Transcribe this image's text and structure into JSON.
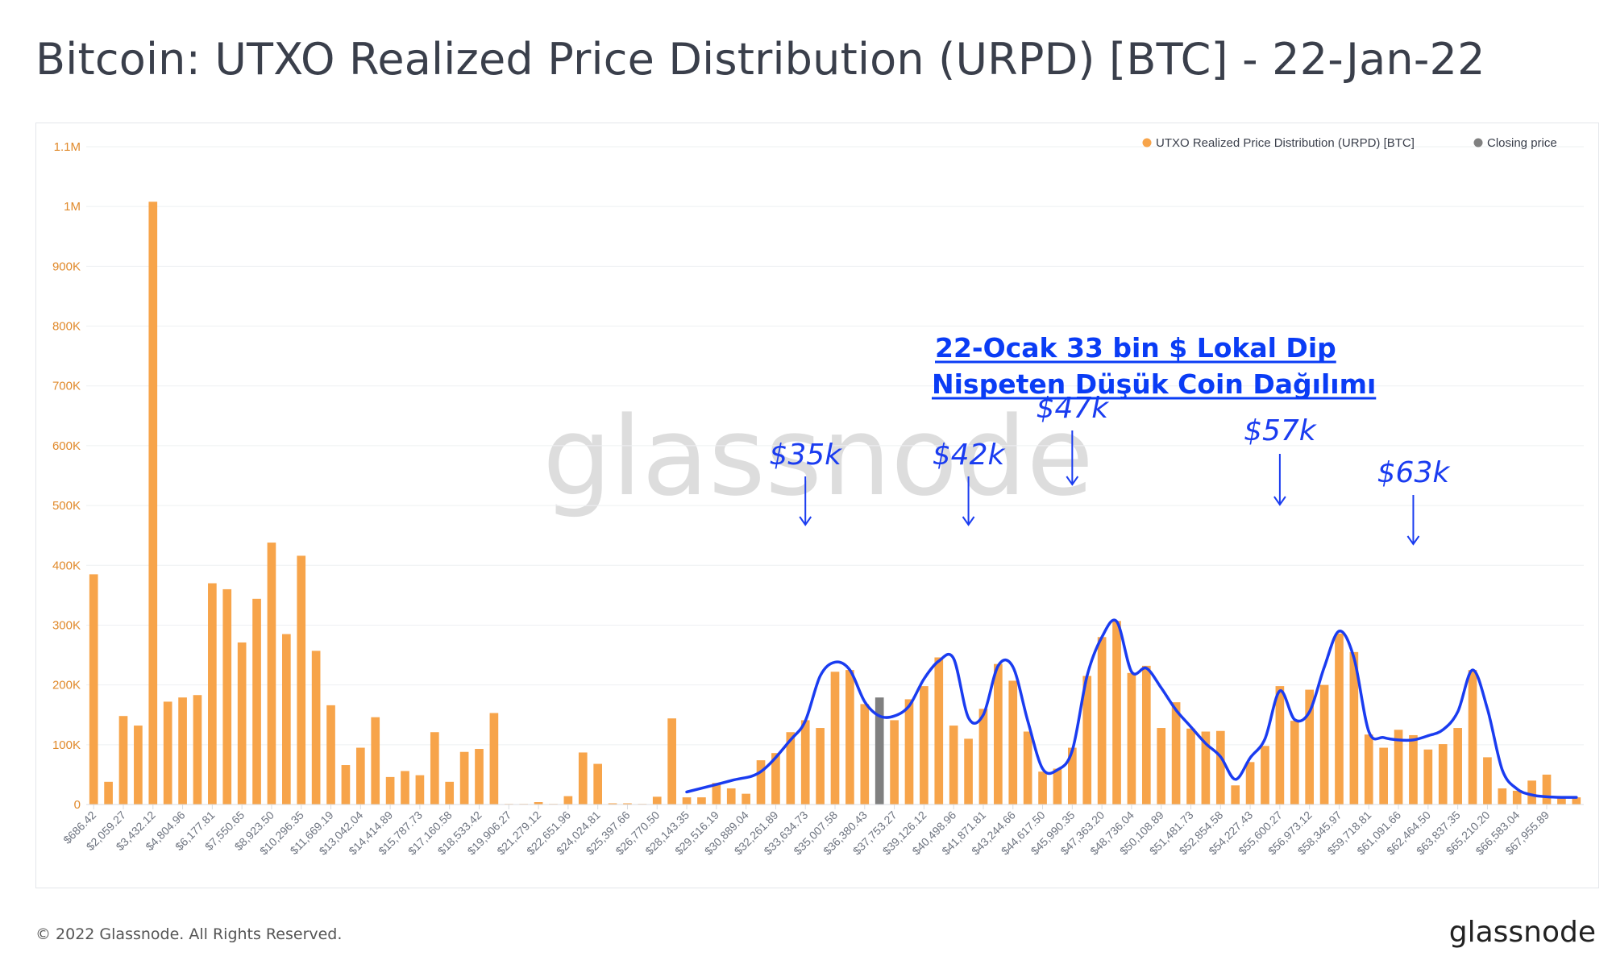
{
  "title": "Bitcoin: UTXO Realized Price Distribution (URPD) [BTC] - 22-Jan-22",
  "footer": {
    "copyright": "© 2022 Glassnode. All Rights Reserved.",
    "logo": "glassnode"
  },
  "watermark": "glassnode",
  "annotation": {
    "line1": "22-Ocak 33 bin $ Lokal Dip",
    "line2": "Nispeten Düşük Coin Dağılımı"
  },
  "peak_labels": [
    {
      "text": "$35k",
      "index": 48
    },
    {
      "text": "$42k",
      "index": 59
    },
    {
      "text": "$47k",
      "index": 66
    },
    {
      "text": "$57k",
      "index": 80
    },
    {
      "text": "$63k",
      "index": 89
    }
  ],
  "colors": {
    "bar": "#f7a44a",
    "closing": "#808080",
    "curve": "#1a3cf0",
    "annotation": "#0a3cf5",
    "axis_text": "#e0892a"
  },
  "chart_data": {
    "type": "bar",
    "ylim": [
      0,
      1100000
    ],
    "yticks": [
      {
        "label": "0",
        "value": 0
      },
      {
        "label": "100K",
        "value": 100000
      },
      {
        "label": "200K",
        "value": 200000
      },
      {
        "label": "300K",
        "value": 300000
      },
      {
        "label": "400K",
        "value": 400000
      },
      {
        "label": "500K",
        "value": 500000
      },
      {
        "label": "600K",
        "value": 600000
      },
      {
        "label": "700K",
        "value": 700000
      },
      {
        "label": "800K",
        "value": 800000
      },
      {
        "label": "900K",
        "value": 900000
      },
      {
        "label": "1M",
        "value": 1000000
      },
      {
        "label": "1.1M",
        "value": 1100000
      }
    ],
    "xtick_labels": [
      "$686.42",
      "$2,059.27",
      "$3,432.12",
      "$4,804.96",
      "$6,177.81",
      "$7,550.65",
      "$8,923.50",
      "$10,296.35",
      "$11,669.19",
      "$13,042.04",
      "$14,414.89",
      "$15,787.73",
      "$17,160.58",
      "$18,533.42",
      "$19,906.27",
      "$21,279.12",
      "$22,651.96",
      "$24,024.81",
      "$25,397.66",
      "$26,770.50",
      "$28,143.35",
      "$29,516.19",
      "$30,889.04",
      "$32,261.89",
      "$33,634.73",
      "$35,007.58",
      "$36,380.43",
      "$37,753.27",
      "$39,126.12",
      "$40,498.96",
      "$41,871.81",
      "$43,244.66",
      "$44,617.50",
      "$45,990.35",
      "$47,363.20",
      "$48,736.04",
      "$50,108.89",
      "$51,481.73",
      "$52,854.58",
      "$54,227.43",
      "$55,600.27",
      "$56,973.12",
      "$58,345.97",
      "$59,718.81",
      "$61,091.66",
      "$62,464.50",
      "$63,837.35",
      "$65,210.20",
      "$66,583.04",
      "$67,955.89"
    ],
    "values": [
      385000,
      38000,
      148000,
      132000,
      1008000,
      172000,
      179000,
      183000,
      370000,
      360000,
      271000,
      344000,
      438000,
      285000,
      416000,
      257000,
      166000,
      66000,
      95000,
      146000,
      46000,
      56000,
      49000,
      121000,
      38000,
      88000,
      93000,
      153000,
      1000,
      1000,
      4000,
      1000,
      14000,
      87000,
      68000,
      2000,
      2000,
      1000,
      13000,
      144000,
      12000,
      12000,
      36000,
      27000,
      18000,
      74000,
      86000,
      121000,
      141000,
      128000,
      222000,
      225000,
      168000,
      179000,
      141000,
      176000,
      198000,
      246000,
      132000,
      110000,
      160000,
      235000,
      207000,
      122000,
      55000,
      60000,
      95000,
      215000,
      280000,
      307000,
      220000,
      232000,
      128000,
      171000,
      127000,
      122000,
      123000,
      32000,
      71000,
      98000,
      198000,
      140000,
      192000,
      200000,
      286000,
      255000,
      117000,
      95000,
      125000,
      116000,
      92000,
      101000,
      128000,
      225000,
      79000,
      27000,
      23000,
      40000,
      50000,
      13000,
      12000
    ],
    "closing_index": 53,
    "legend": [
      {
        "name": "UTXO Realized Price Distribution (URPD) [BTC]",
        "color": "#f7a44a"
      },
      {
        "name": "Closing price",
        "color": "#808080"
      }
    ],
    "curve_points": [
      [
        40,
        21000
      ],
      [
        43,
        40000
      ],
      [
        45,
        55000
      ],
      [
        47,
        108000
      ],
      [
        48,
        140000
      ],
      [
        49,
        215000
      ],
      [
        50,
        238000
      ],
      [
        51,
        225000
      ],
      [
        52,
        172000
      ],
      [
        53,
        148000
      ],
      [
        54,
        148000
      ],
      [
        55,
        165000
      ],
      [
        56,
        210000
      ],
      [
        57,
        240000
      ],
      [
        58,
        244000
      ],
      [
        59,
        145000
      ],
      [
        60,
        150000
      ],
      [
        61,
        232000
      ],
      [
        62,
        230000
      ],
      [
        63,
        140000
      ],
      [
        64,
        60000
      ],
      [
        65,
        58000
      ],
      [
        66,
        90000
      ],
      [
        67,
        215000
      ],
      [
        68,
        280000
      ],
      [
        69,
        306000
      ],
      [
        70,
        222000
      ],
      [
        71,
        228000
      ],
      [
        72,
        195000
      ],
      [
        73,
        158000
      ],
      [
        74,
        130000
      ],
      [
        75,
        102000
      ],
      [
        76,
        80000
      ],
      [
        77,
        42000
      ],
      [
        78,
        78000
      ],
      [
        79,
        110000
      ],
      [
        80,
        190000
      ],
      [
        81,
        142000
      ],
      [
        82,
        155000
      ],
      [
        83,
        230000
      ],
      [
        84,
        290000
      ],
      [
        85,
        245000
      ],
      [
        86,
        122000
      ],
      [
        87,
        112000
      ],
      [
        88,
        108000
      ],
      [
        89,
        108000
      ],
      [
        90,
        115000
      ],
      [
        91,
        125000
      ],
      [
        92,
        155000
      ],
      [
        93,
        225000
      ],
      [
        94,
        160000
      ],
      [
        95,
        58000
      ],
      [
        96,
        26000
      ],
      [
        97,
        16000
      ],
      [
        98,
        13000
      ],
      [
        99,
        12000
      ],
      [
        100,
        12000
      ]
    ]
  }
}
